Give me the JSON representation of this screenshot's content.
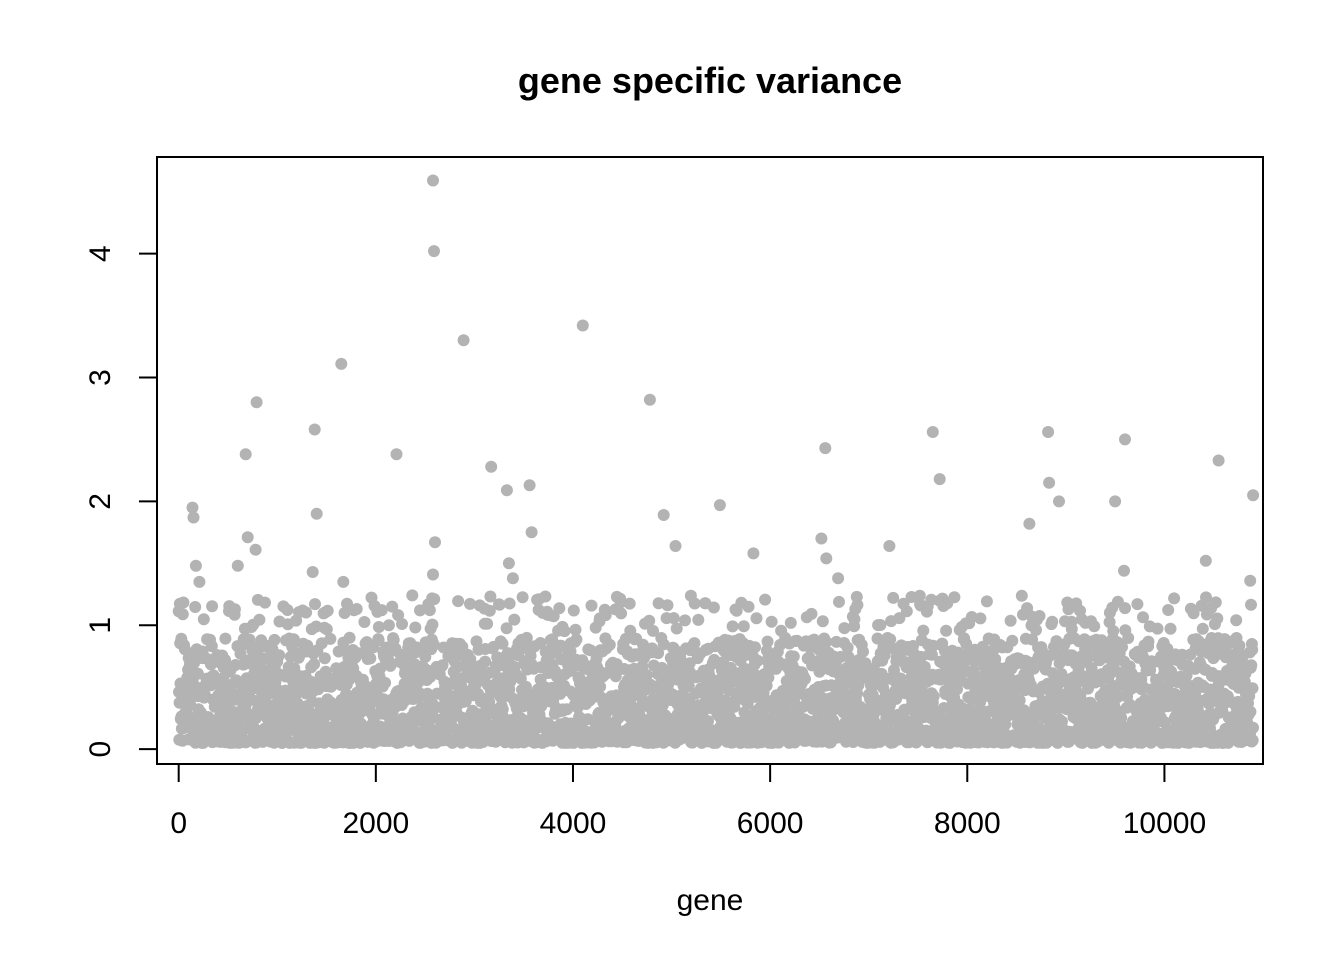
{
  "chart_data": {
    "type": "scatter",
    "title": "gene specific variance",
    "xlabel": "gene",
    "ylabel": "",
    "xlim": [
      -220,
      11000
    ],
    "ylim": [
      -0.12,
      4.78
    ],
    "xticks": [
      0,
      2000,
      4000,
      6000,
      8000,
      10000
    ],
    "xtick_labels": [
      "0",
      "2000",
      "4000",
      "6000",
      "8000",
      "10000"
    ],
    "yticks": [
      0,
      1,
      2,
      3,
      4
    ],
    "ytick_labels": [
      "0",
      "1",
      "2",
      "3",
      "4"
    ],
    "grid": false,
    "legend": "none",
    "n_points": 10900,
    "baseline_range": [
      0.05,
      1.25
    ],
    "series": [
      {
        "color": "#b3b3b3",
        "outliers": {
          "x": [
            140,
            150,
            175,
            210,
            600,
            680,
            700,
            790,
            780,
            1380,
            1400,
            1360,
            1650,
            1670,
            2210,
            2580,
            2590,
            2600,
            2580,
            2890,
            3170,
            3330,
            3350,
            3390,
            3560,
            3580,
            4100,
            4780,
            4920,
            5040,
            5490,
            5830,
            6520,
            6560,
            6570,
            6690,
            7210,
            7650,
            7720,
            8630,
            8820,
            8830,
            8930,
            9500,
            9600,
            9590,
            10420,
            10550,
            10870,
            10900
          ],
          "y": [
            1.95,
            1.87,
            1.48,
            1.35,
            1.48,
            2.38,
            1.71,
            2.8,
            1.61,
            2.58,
            1.9,
            1.43,
            3.11,
            1.35,
            2.38,
            4.59,
            4.02,
            1.67,
            1.41,
            3.3,
            2.28,
            2.09,
            1.5,
            1.38,
            2.13,
            1.75,
            3.42,
            2.82,
            1.89,
            1.64,
            1.97,
            1.58,
            1.7,
            2.43,
            1.54,
            1.38,
            1.64,
            2.56,
            2.18,
            1.82,
            2.56,
            2.15,
            2.0,
            2.0,
            2.5,
            1.44,
            1.52,
            2.33,
            1.36,
            2.05
          ]
        }
      }
    ]
  }
}
